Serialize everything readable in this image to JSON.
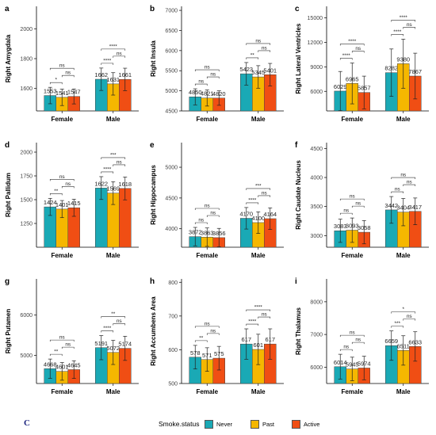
{
  "corner_mark": "C",
  "legend": {
    "title": "Smoke.status",
    "items": [
      {
        "label": "Never",
        "color": "#1aa9b5"
      },
      {
        "label": "Past",
        "color": "#f5b700"
      },
      {
        "label": "Active",
        "color": "#f04e14"
      }
    ]
  },
  "chart_data": [
    {
      "type": "bar",
      "letter": "a",
      "ylabel": "Right Amygdala",
      "categories": [
        "Female",
        "Male"
      ],
      "ylim": [
        1450,
        2150
      ],
      "yticks": [
        1600,
        1800,
        2000
      ],
      "series": [
        {
          "name": "Never",
          "values": [
            1553,
            1662
          ],
          "err": [
            55,
            75
          ]
        },
        {
          "name": "Past",
          "values": [
            1541,
            1631
          ],
          "err": [
            55,
            75
          ]
        },
        {
          "name": "Active",
          "values": [
            1547,
            1661
          ],
          "err": [
            50,
            75
          ]
        }
      ],
      "labels": [
        [
          "1553",
          "1541",
          "1547"
        ],
        [
          "1662",
          "1631",
          "1661"
        ]
      ],
      "sig": [
        [
          [
            "*",
            "ns",
            "ns"
          ]
        ],
        [
          [
            "****",
            "ns",
            "****"
          ]
        ]
      ]
    },
    {
      "type": "bar",
      "letter": "b",
      "ylabel": "Right Insula",
      "categories": [
        "Female",
        "Male"
      ],
      "ylim": [
        4500,
        7100
      ],
      "yticks": [
        4500,
        5000,
        5500,
        6000,
        6500,
        7000
      ],
      "series": [
        {
          "name": "Never",
          "values": [
            4850,
            5423
          ],
          "err": [
            200,
            280
          ]
        },
        {
          "name": "Past",
          "values": [
            4821,
            5345
          ],
          "err": [
            200,
            280
          ]
        },
        {
          "name": "Active",
          "values": [
            4820,
            5401
          ],
          "err": [
            180,
            280
          ]
        }
      ],
      "labels": [
        [
          "4850",
          "4821",
          "4820"
        ],
        [
          "5423",
          "5345",
          "5401"
        ]
      ],
      "sig": [
        [
          [
            "ns",
            "ns",
            "ns"
          ]
        ],
        [
          [
            "**",
            "ns",
            "ns"
          ]
        ]
      ]
    },
    {
      "type": "bar",
      "letter": "c",
      "ylabel": "Right Lateral Ventricles",
      "categories": [
        "Female",
        "Male"
      ],
      "ylim": [
        3600,
        16400
      ],
      "yticks": [
        6000,
        9000,
        12000,
        15000
      ],
      "series": [
        {
          "name": "Never",
          "values": [
            6029,
            8282
          ],
          "err": [
            2400,
            2900
          ]
        },
        {
          "name": "Past",
          "values": [
            6965,
            9380
          ],
          "err": [
            2500,
            3000
          ]
        },
        {
          "name": "Active",
          "values": [
            5857,
            7867
          ],
          "err": [
            2000,
            2800
          ]
        }
      ],
      "labels": [
        [
          "6029",
          "6965",
          "5857"
        ],
        [
          "8282",
          "9380",
          "7867"
        ]
      ],
      "sig": [
        [
          [
            "****",
            "ns",
            "****"
          ]
        ],
        [
          [
            "****",
            "ns",
            "****"
          ]
        ]
      ]
    },
    {
      "type": "bar",
      "letter": "d",
      "ylabel": "Right Pallidum",
      "categories": [
        "Female",
        "Male"
      ],
      "ylim": [
        1000,
        2100
      ],
      "yticks": [
        1250,
        1500,
        1750,
        2000
      ],
      "series": [
        {
          "name": "Never",
          "values": [
            1424,
            1622
          ],
          "err": [
            90,
            120
          ]
        },
        {
          "name": "Past",
          "values": [
            1401,
            1569
          ],
          "err": [
            90,
            120
          ]
        },
        {
          "name": "Active",
          "values": [
            1415,
            1618
          ],
          "err": [
            90,
            120
          ]
        }
      ],
      "labels": [
        [
          "1424",
          "1401",
          "1415"
        ],
        [
          "1622",
          "1569",
          "1618"
        ]
      ],
      "sig": [
        [
          [
            "**",
            "ns",
            "ns"
          ]
        ],
        [
          [
            "****",
            "ns",
            "***"
          ]
        ]
      ]
    },
    {
      "type": "bar",
      "letter": "e",
      "ylabel": "Right Hippocampus",
      "categories": [
        "Female",
        "Male"
      ],
      "ylim": [
        3700,
        5400
      ],
      "yticks": [
        4000,
        4500,
        5000
      ],
      "series": [
        {
          "name": "Never",
          "values": [
            3872,
            4170
          ],
          "err": [
            150,
            175
          ]
        },
        {
          "name": "Past",
          "values": [
            3863,
            4100
          ],
          "err": [
            150,
            175
          ]
        },
        {
          "name": "Active",
          "values": [
            3856,
            4164
          ],
          "err": [
            150,
            175
          ]
        }
      ],
      "labels": [
        [
          "3872",
          "3863",
          "3856"
        ],
        [
          "4170",
          "4100",
          "4164"
        ]
      ],
      "sig": [
        [
          [
            "ns",
            "ns",
            "ns"
          ]
        ],
        [
          [
            "****",
            "ns",
            "***"
          ]
        ]
      ]
    },
    {
      "type": "bar",
      "letter": "f",
      "ylabel": "Right Caudate Nucleus",
      "categories": [
        "Female",
        "Male"
      ],
      "ylim": [
        2800,
        4600
      ],
      "yticks": [
        3000,
        3500,
        4000,
        4500
      ],
      "series": [
        {
          "name": "Never",
          "values": [
            3083,
            3442
          ],
          "err": [
            200,
            230
          ]
        },
        {
          "name": "Past",
          "values": [
            3093,
            3404
          ],
          "err": [
            210,
            235
          ]
        },
        {
          "name": "Active",
          "values": [
            3058,
            3417
          ],
          "err": [
            200,
            230
          ]
        }
      ],
      "labels": [
        [
          "3083",
          "3093",
          "3058"
        ],
        [
          "3442",
          "3404",
          "3417"
        ]
      ],
      "sig": [
        [
          [
            "ns",
            "ns",
            "ns"
          ]
        ],
        [
          [
            "ns",
            "ns",
            "ns"
          ]
        ]
      ]
    },
    {
      "type": "bar",
      "letter": "g",
      "ylabel": "Right Putamen",
      "categories": [
        "Female",
        "Male"
      ],
      "ylim": [
        4300,
        6900
      ],
      "yticks": [
        5000,
        6000
      ],
      "series": [
        {
          "name": "Never",
          "values": [
            4668,
            5191
          ],
          "err": [
            240,
            300
          ]
        },
        {
          "name": "Past",
          "values": [
            4601,
            5072
          ],
          "err": [
            220,
            300
          ]
        },
        {
          "name": "Active",
          "values": [
            4645,
            5174
          ],
          "err": [
            220,
            300
          ]
        }
      ],
      "labels": [
        [
          "4668",
          "4601",
          "4645"
        ],
        [
          "5191",
          "5072",
          "5174"
        ]
      ],
      "sig": [
        [
          [
            "**",
            "ns",
            "ns"
          ]
        ],
        [
          [
            "****",
            "ns",
            "**"
          ]
        ]
      ]
    },
    {
      "type": "bar",
      "letter": "h",
      "ylabel": "Right Accumbens Area",
      "categories": [
        "Female",
        "Male"
      ],
      "ylim": [
        500,
        810
      ],
      "yticks": [
        500,
        600,
        700,
        800
      ],
      "series": [
        {
          "name": "Never",
          "values": [
            578,
            617
          ],
          "err": [
            35,
            45
          ]
        },
        {
          "name": "Past",
          "values": [
            571,
            601
          ],
          "err": [
            35,
            45
          ]
        },
        {
          "name": "Active",
          "values": [
            575,
            617
          ],
          "err": [
            35,
            45
          ]
        }
      ],
      "labels": [
        [
          "578",
          "571",
          "575"
        ],
        [
          "617",
          "601",
          "617"
        ]
      ],
      "sig": [
        [
          [
            "**",
            "ns",
            "ns"
          ]
        ],
        [
          [
            "****",
            "ns",
            "****"
          ]
        ]
      ]
    },
    {
      "type": "bar",
      "letter": "i",
      "ylabel": "Right Thalamus",
      "categories": [
        "Female",
        "Male"
      ],
      "ylim": [
        5500,
        8700
      ],
      "yticks": [
        6000,
        7000,
        8000
      ],
      "series": [
        {
          "name": "Never",
          "values": [
            6014,
            6659
          ],
          "err": [
            380,
            450
          ]
        },
        {
          "name": "Past",
          "values": [
            5945,
            6511
          ],
          "err": [
            360,
            450
          ]
        },
        {
          "name": "Active",
          "values": [
            5974,
            6633
          ],
          "err": [
            360,
            450
          ]
        }
      ],
      "labels": [
        [
          "6014",
          "5945",
          "5974"
        ],
        [
          "6659",
          "6511",
          "6633"
        ]
      ],
      "sig": [
        [
          [
            "ns",
            "ns",
            "ns"
          ]
        ],
        [
          [
            "***",
            "ns",
            "*"
          ]
        ]
      ]
    }
  ]
}
